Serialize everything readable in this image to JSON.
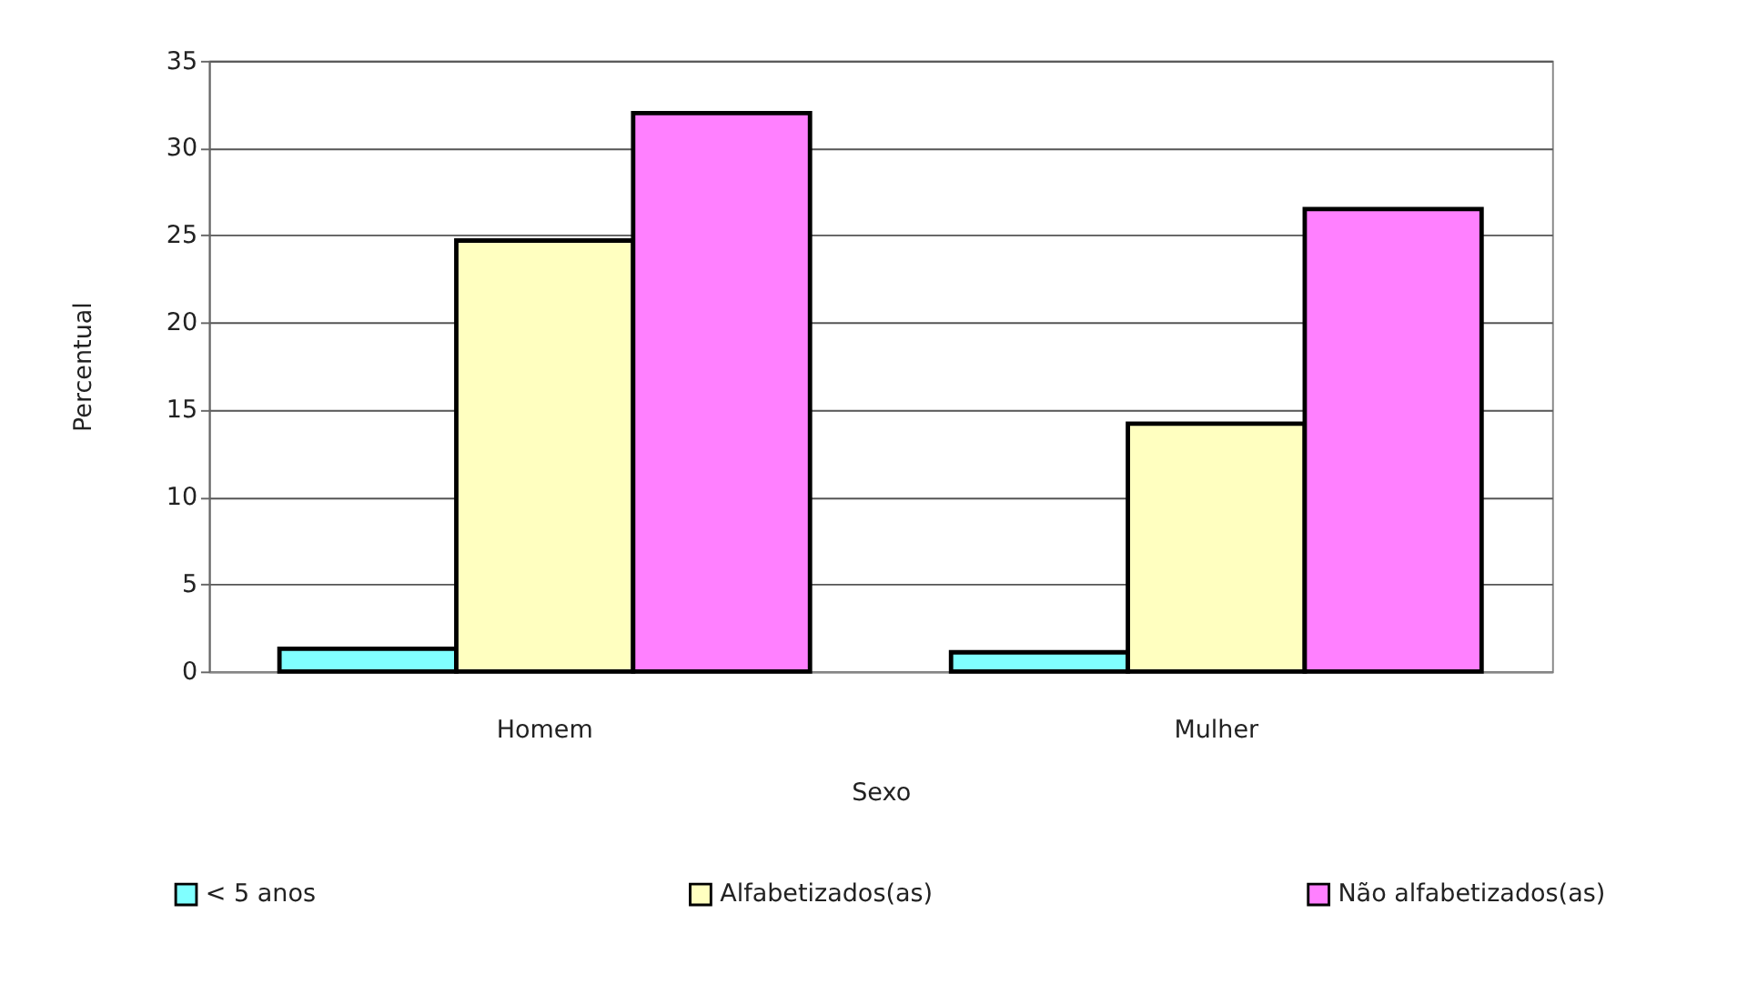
{
  "chart_data": {
    "type": "bar",
    "xlabel": "Sexo",
    "ylabel": "Percentual",
    "categories": [
      "Homem",
      "Mulher"
    ],
    "series": [
      {
        "name": "< 5 anos",
        "color": "#80ffff",
        "values": [
          1.3,
          1.1
        ]
      },
      {
        "name": "Alfabetizados(as)",
        "color": "#ffffc0",
        "values": [
          24.7,
          14.2
        ]
      },
      {
        "name": "Não alfabetizados(as)",
        "color": "#ff80ff",
        "values": [
          32.0,
          26.5
        ]
      }
    ],
    "ylim": [
      0,
      35
    ],
    "yticks": [
      0,
      5,
      10,
      15,
      20,
      25,
      30,
      35
    ],
    "grid": "y",
    "legend": "bottom"
  }
}
